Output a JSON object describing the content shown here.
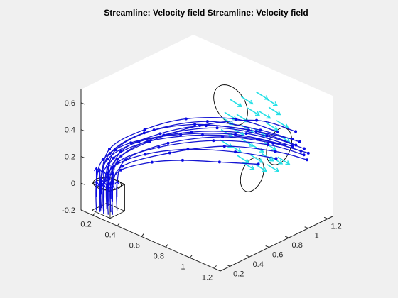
{
  "window": {
    "background": "#f0f0f0"
  },
  "chart_data": {
    "type": "scatter",
    "subtype": "3d-streamline",
    "title": "Streamline: Velocity field Streamline: Velocity field",
    "xlabel": "",
    "ylabel": "",
    "zlabel": "",
    "xlim": [
      0.1,
      1.25
    ],
    "ylim": [
      0.1,
      1.25
    ],
    "zlim": [
      -0.2,
      0.7
    ],
    "xticks": [
      0.2,
      0.4,
      0.6,
      0.8,
      1,
      1.2
    ],
    "xtick_labels": [
      "0.2",
      "0.4",
      "0.6",
      "0.8",
      "1",
      "1.2"
    ],
    "yticks": [
      0.2,
      0.4,
      0.6,
      0.8,
      1,
      1.2
    ],
    "ytick_labels": [
      "0.2",
      "0.4",
      "0.6",
      "0.8",
      "1",
      "1.2"
    ],
    "zticks": [
      -0.2,
      0,
      0.2,
      0.4,
      0.6
    ],
    "ztick_labels": [
      "-0.2",
      "0",
      "0.2",
      "0.4",
      "0.6"
    ],
    "grid": false,
    "legend": "none",
    "colors": {
      "streamline": "#1515d2",
      "arrow_dark": "#0a0ae6",
      "arrow_cyan": "#25e0e6",
      "geometry": "#000000",
      "axes_face": "#ffffff",
      "axis_line": "#262626"
    },
    "geometry": {
      "inlet_box": {
        "x": [
          0.15,
          0.3
        ],
        "y": [
          0.15,
          0.3
        ],
        "z": [
          -0.2,
          0.0
        ]
      },
      "inlet_ring": {
        "center": [
          0.22,
          0.22,
          0.0
        ],
        "radius": 0.09
      },
      "outlet_ring": {
        "center": [
          1.05,
          0.95,
          0.35
        ],
        "radius": 0.13
      },
      "upper_ring": {
        "center": [
          0.65,
          0.95,
          0.5
        ],
        "radius": 0.14
      },
      "side_ring": {
        "center": [
          1.15,
          0.55,
          0.32
        ],
        "radius": 0.12
      }
    },
    "streamlines": [
      {
        "pts": [
          [
            0.17,
            0.17,
            -0.2
          ],
          [
            0.17,
            0.17,
            0.0
          ],
          [
            0.2,
            0.2,
            0.18
          ],
          [
            0.35,
            0.3,
            0.33
          ],
          [
            0.6,
            0.5,
            0.42
          ],
          [
            0.85,
            0.75,
            0.43
          ],
          [
            1.1,
            0.95,
            0.38
          ]
        ]
      },
      {
        "pts": [
          [
            0.2,
            0.17,
            -0.2
          ],
          [
            0.2,
            0.17,
            0.0
          ],
          [
            0.24,
            0.2,
            0.2
          ],
          [
            0.4,
            0.32,
            0.35
          ],
          [
            0.65,
            0.55,
            0.44
          ],
          [
            0.9,
            0.8,
            0.44
          ],
          [
            1.12,
            1.0,
            0.36
          ]
        ]
      },
      {
        "pts": [
          [
            0.23,
            0.17,
            -0.2
          ],
          [
            0.23,
            0.17,
            0.0
          ],
          [
            0.28,
            0.21,
            0.22
          ],
          [
            0.45,
            0.35,
            0.36
          ],
          [
            0.7,
            0.6,
            0.42
          ],
          [
            0.95,
            0.85,
            0.4
          ],
          [
            1.15,
            1.05,
            0.32
          ]
        ]
      },
      {
        "pts": [
          [
            0.26,
            0.18,
            -0.2
          ],
          [
            0.26,
            0.18,
            0.0
          ],
          [
            0.3,
            0.23,
            0.19
          ],
          [
            0.5,
            0.4,
            0.32
          ],
          [
            0.75,
            0.65,
            0.38
          ],
          [
            1.0,
            0.9,
            0.36
          ],
          [
            1.15,
            1.08,
            0.28
          ]
        ]
      },
      {
        "pts": [
          [
            0.28,
            0.2,
            -0.2
          ],
          [
            0.28,
            0.2,
            0.0
          ],
          [
            0.32,
            0.25,
            0.16
          ],
          [
            0.55,
            0.45,
            0.28
          ],
          [
            0.8,
            0.7,
            0.34
          ],
          [
            1.02,
            0.95,
            0.3
          ],
          [
            1.16,
            1.1,
            0.24
          ]
        ]
      },
      {
        "pts": [
          [
            0.17,
            0.22,
            -0.2
          ],
          [
            0.17,
            0.22,
            0.0
          ],
          [
            0.21,
            0.26,
            0.21
          ],
          [
            0.38,
            0.4,
            0.38
          ],
          [
            0.62,
            0.62,
            0.46
          ],
          [
            0.88,
            0.85,
            0.44
          ],
          [
            1.08,
            1.05,
            0.38
          ]
        ]
      },
      {
        "pts": [
          [
            0.2,
            0.24,
            -0.2
          ],
          [
            0.2,
            0.24,
            0.0
          ],
          [
            0.24,
            0.28,
            0.24
          ],
          [
            0.42,
            0.45,
            0.4
          ],
          [
            0.66,
            0.7,
            0.47
          ],
          [
            0.92,
            0.92,
            0.43
          ],
          [
            1.1,
            1.1,
            0.35
          ]
        ]
      },
      {
        "pts": [
          [
            0.23,
            0.26,
            -0.2
          ],
          [
            0.23,
            0.26,
            0.0
          ],
          [
            0.27,
            0.3,
            0.2
          ],
          [
            0.46,
            0.5,
            0.36
          ],
          [
            0.7,
            0.75,
            0.42
          ],
          [
            0.94,
            0.96,
            0.38
          ],
          [
            1.12,
            1.12,
            0.3
          ]
        ]
      },
      {
        "pts": [
          [
            0.26,
            0.27,
            -0.2
          ],
          [
            0.26,
            0.27,
            0.0
          ],
          [
            0.3,
            0.31,
            0.18
          ],
          [
            0.48,
            0.52,
            0.3
          ],
          [
            0.72,
            0.78,
            0.35
          ],
          [
            0.96,
            1.0,
            0.32
          ],
          [
            1.13,
            1.15,
            0.26
          ]
        ]
      },
      {
        "pts": [
          [
            0.18,
            0.28,
            -0.2
          ],
          [
            0.18,
            0.28,
            0.0
          ],
          [
            0.22,
            0.32,
            0.15
          ],
          [
            0.36,
            0.48,
            0.28
          ],
          [
            0.58,
            0.72,
            0.4
          ],
          [
            0.84,
            0.98,
            0.45
          ],
          [
            1.05,
            1.12,
            0.4
          ]
        ]
      },
      {
        "pts": [
          [
            0.21,
            0.2,
            -0.2
          ],
          [
            0.21,
            0.2,
            0.0
          ],
          [
            0.26,
            0.24,
            0.14
          ],
          [
            0.42,
            0.36,
            0.25
          ],
          [
            0.62,
            0.55,
            0.3
          ],
          [
            0.85,
            0.75,
            0.3
          ],
          [
            1.05,
            0.92,
            0.27
          ]
        ]
      },
      {
        "pts": [
          [
            0.25,
            0.22,
            -0.2
          ],
          [
            0.25,
            0.22,
            0.0
          ],
          [
            0.3,
            0.26,
            0.12
          ],
          [
            0.46,
            0.38,
            0.2
          ],
          [
            0.6,
            0.52,
            0.22
          ],
          [
            0.8,
            0.65,
            0.24
          ],
          [
            1.0,
            0.8,
            0.25
          ]
        ]
      },
      {
        "pts": [
          [
            0.19,
            0.19,
            -0.2
          ],
          [
            0.19,
            0.19,
            0.0
          ],
          [
            0.23,
            0.23,
            0.26
          ],
          [
            0.4,
            0.38,
            0.42
          ],
          [
            0.58,
            0.58,
            0.5
          ],
          [
            0.8,
            0.82,
            0.5
          ],
          [
            1.0,
            1.0,
            0.42
          ]
        ]
      },
      {
        "pts": [
          [
            0.24,
            0.23,
            -0.2
          ],
          [
            0.24,
            0.23,
            0.0
          ],
          [
            0.29,
            0.27,
            0.25
          ],
          [
            0.48,
            0.44,
            0.4
          ],
          [
            0.68,
            0.66,
            0.46
          ],
          [
            0.9,
            0.9,
            0.42
          ],
          [
            1.1,
            1.06,
            0.34
          ]
        ]
      }
    ],
    "cyan_arrows": [
      [
        0.7,
        0.95,
        0.45
      ],
      [
        0.75,
        1.0,
        0.5
      ],
      [
        0.8,
        1.05,
        0.48
      ],
      [
        0.72,
        0.88,
        0.38
      ],
      [
        0.78,
        0.9,
        0.42
      ],
      [
        0.85,
        0.95,
        0.4
      ],
      [
        0.9,
        1.0,
        0.45
      ],
      [
        0.68,
        1.02,
        0.55
      ],
      [
        0.62,
        0.98,
        0.52
      ],
      [
        0.82,
        0.85,
        0.35
      ],
      [
        0.88,
        0.88,
        0.32
      ],
      [
        0.95,
        0.92,
        0.35
      ],
      [
        0.92,
        0.82,
        0.28
      ],
      [
        0.98,
        0.86,
        0.3
      ],
      [
        1.02,
        0.9,
        0.28
      ],
      [
        0.86,
        1.08,
        0.52
      ],
      [
        0.94,
        1.06,
        0.46
      ],
      [
        1.0,
        1.0,
        0.4
      ],
      [
        0.76,
        0.8,
        0.3
      ],
      [
        0.7,
        0.78,
        0.32
      ],
      [
        0.64,
        0.9,
        0.46
      ],
      [
        0.6,
        0.92,
        0.4
      ],
      [
        0.66,
        0.84,
        0.36
      ],
      [
        0.84,
        0.78,
        0.26
      ],
      [
        0.9,
        0.76,
        0.24
      ],
      [
        0.97,
        0.8,
        0.24
      ],
      [
        1.04,
        0.84,
        0.25
      ],
      [
        1.08,
        0.9,
        0.3
      ],
      [
        0.74,
        1.1,
        0.58
      ],
      [
        0.8,
        1.12,
        0.55
      ]
    ],
    "dark_arrows": [
      [
        0.17,
        0.17,
        -0.1
      ],
      [
        0.2,
        0.17,
        -0.1
      ],
      [
        0.23,
        0.17,
        -0.1
      ],
      [
        0.26,
        0.18,
        -0.1
      ],
      [
        0.28,
        0.2,
        -0.1
      ],
      [
        0.17,
        0.22,
        -0.1
      ],
      [
        0.2,
        0.24,
        -0.1
      ],
      [
        0.23,
        0.26,
        -0.1
      ],
      [
        0.26,
        0.27,
        -0.1
      ],
      [
        0.18,
        0.28,
        -0.1
      ],
      [
        0.21,
        0.2,
        -0.1
      ],
      [
        0.25,
        0.22,
        -0.1
      ],
      [
        0.19,
        0.19,
        -0.1
      ],
      [
        0.24,
        0.23,
        -0.1
      ],
      [
        0.17,
        0.17,
        0.0
      ],
      [
        0.2,
        0.17,
        0.0
      ],
      [
        0.23,
        0.17,
        0.0
      ],
      [
        0.26,
        0.18,
        0.0
      ],
      [
        0.28,
        0.2,
        0.0
      ],
      [
        0.2,
        0.24,
        0.0
      ],
      [
        0.23,
        0.26,
        0.0
      ],
      [
        0.18,
        0.28,
        0.0
      ]
    ]
  }
}
